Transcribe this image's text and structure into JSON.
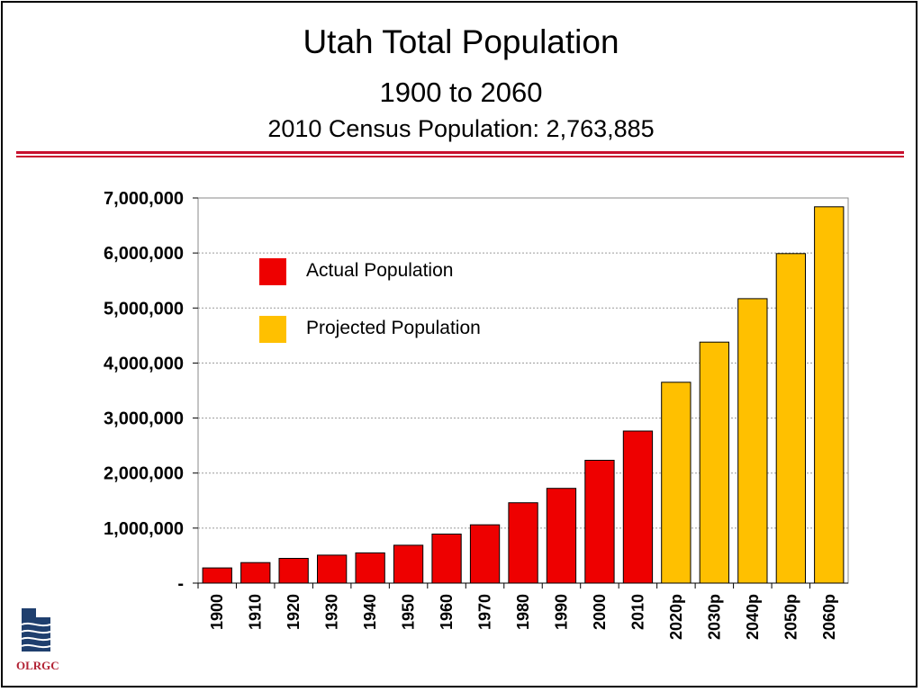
{
  "slide": {
    "title": "Utah Total Population",
    "subtitle": "1900 to 2060",
    "census_line": "2010 Census Population: 2,763,885",
    "logo_label": "OLRGC"
  },
  "colors": {
    "actual": "#ee0000",
    "projected": "#ffc000",
    "rule": "#c8102e",
    "logo": "#1f3f6e"
  },
  "chart_data": {
    "type": "bar",
    "title": "",
    "xlabel": "",
    "ylabel": "",
    "ylim": [
      0,
      7000000
    ],
    "grid": true,
    "legend_placement": "top-left",
    "yticks": [
      0,
      1000000,
      2000000,
      3000000,
      4000000,
      5000000,
      6000000,
      7000000
    ],
    "ytick_labels": [
      "-",
      "1,000,000",
      "2,000,000",
      "3,000,000",
      "4,000,000",
      "5,000,000",
      "6,000,000",
      "7,000,000"
    ],
    "categories": [
      "1900",
      "1910",
      "1920",
      "1930",
      "1940",
      "1950",
      "1960",
      "1970",
      "1980",
      "1990",
      "2000",
      "2010",
      "2020p",
      "2030p",
      "2040p",
      "2050p",
      "2060p"
    ],
    "series": [
      {
        "name": "Actual Population",
        "values": [
          276749,
          373351,
          449396,
          507847,
          550310,
          688862,
          890627,
          1059273,
          1461037,
          1722850,
          2233169,
          2763885,
          null,
          null,
          null,
          null,
          null
        ]
      },
      {
        "name": "Projected Population",
        "values": [
          null,
          null,
          null,
          null,
          null,
          null,
          null,
          null,
          null,
          null,
          null,
          null,
          3650000,
          4380000,
          5170000,
          5990000,
          6840000
        ]
      }
    ]
  }
}
